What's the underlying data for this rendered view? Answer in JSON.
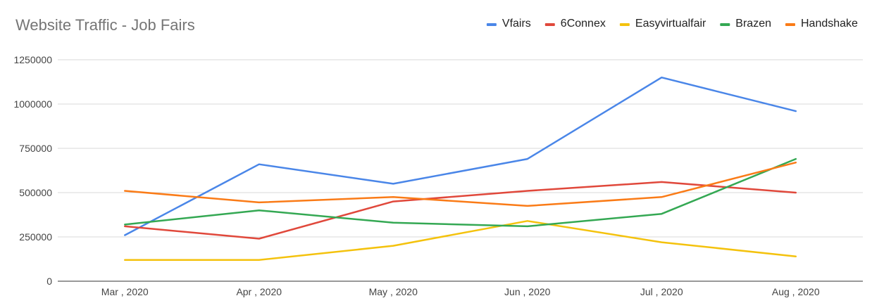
{
  "chart_data": {
    "type": "line",
    "title": "Website Traffic - Job Fairs",
    "xlabel": "",
    "ylabel": "",
    "categories": [
      "Mar , 2020",
      "Apr , 2020",
      "May , 2020",
      "Jun , 2020",
      "Jul , 2020",
      "Aug , 2020"
    ],
    "ylim": [
      0,
      1250000
    ],
    "yticks": [
      "0",
      "250000",
      "500000",
      "750000",
      "1000000",
      "1250000"
    ],
    "grid": true,
    "legend_position": "top-right",
    "series": [
      {
        "name": "Vfairs",
        "color": "#4a86e8",
        "values": [
          260000,
          660000,
          550000,
          690000,
          1150000,
          960000
        ]
      },
      {
        "name": "6Connex",
        "color": "#e0483b",
        "values": [
          310000,
          240000,
          450000,
          510000,
          560000,
          500000
        ]
      },
      {
        "name": "Easyvirtualfair",
        "color": "#f4c20d",
        "values": [
          120000,
          120000,
          200000,
          340000,
          220000,
          140000
        ]
      },
      {
        "name": "Brazen",
        "color": "#34a853",
        "values": [
          320000,
          400000,
          330000,
          310000,
          380000,
          690000
        ]
      },
      {
        "name": "Handshake",
        "color": "#fa7b17",
        "values": [
          510000,
          445000,
          475000,
          425000,
          475000,
          670000
        ]
      }
    ]
  }
}
